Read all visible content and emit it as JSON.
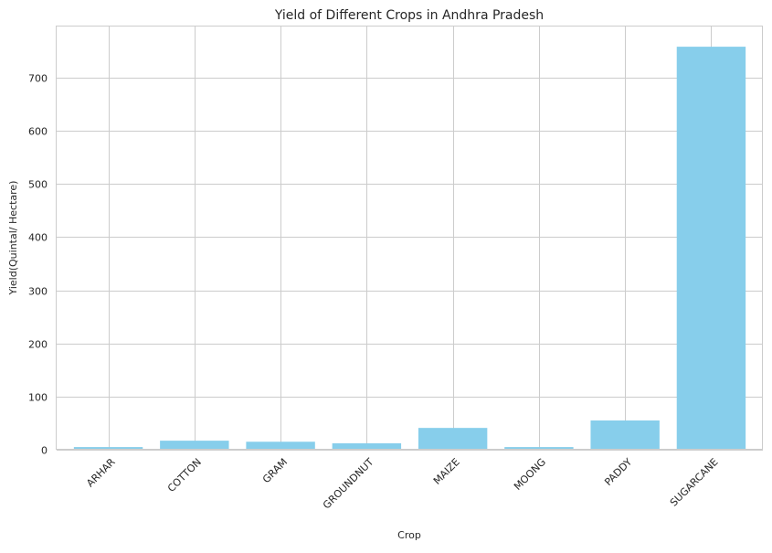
{
  "chart_data": {
    "type": "bar",
    "title": "Yield of Different Crops in Andhra Pradesh",
    "xlabel": "Crop",
    "ylabel": "Yield(Quintal/ Hectare)",
    "categories": [
      "ARHAR",
      "COTTON",
      "GRAM",
      "GROUNDNUT",
      "MAIZE",
      "MOONG",
      "PADDY",
      "SUGARCANE"
    ],
    "values": [
      5,
      17,
      15,
      12,
      41,
      5,
      55,
      758
    ],
    "ylim": [
      0,
      796
    ],
    "yticks": [
      0,
      100,
      200,
      300,
      400,
      500,
      600,
      700
    ],
    "grid": true,
    "bar_color": "#87ceeb",
    "grid_color": "#cccccc",
    "tick_rotation_deg": 45
  }
}
